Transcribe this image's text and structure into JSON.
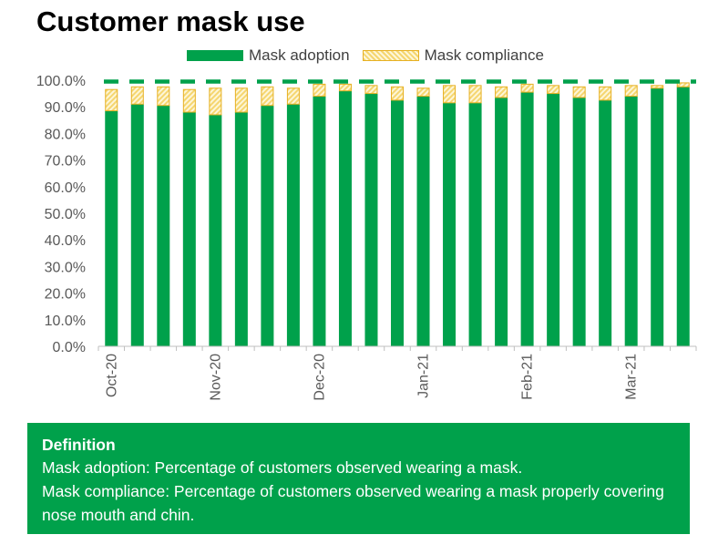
{
  "chart_data": {
    "type": "bar",
    "stacked": true,
    "title": "Customer mask use",
    "categories": [
      "Oct-20",
      "",
      "",
      "",
      "Nov-20",
      "",
      "",
      "",
      "Dec-20",
      "",
      "",
      "",
      "Jan-21",
      "",
      "",
      "",
      "Feb-21",
      "",
      "",
      "",
      "Mar-21",
      "",
      ""
    ],
    "x_tick_labels": [
      "Oct-20",
      "Nov-20",
      "Dec-20",
      "Jan-21",
      "Feb-21",
      "Mar-21"
    ],
    "series": [
      {
        "name": "Mask adoption",
        "values": [
          88.5,
          91,
          90.5,
          88,
          87,
          88,
          90.5,
          91,
          94,
          96,
          95,
          92.5,
          94,
          91.5,
          91.5,
          93.5,
          95.5,
          95,
          93.5,
          92.5,
          94,
          97,
          97.5
        ]
      },
      {
        "name": "Mask compliance",
        "values": [
          8,
          6.5,
          7,
          8.5,
          10,
          9,
          7,
          6,
          4.5,
          2.5,
          3,
          5,
          3,
          6.5,
          6.5,
          4,
          3,
          3,
          4,
          5,
          4,
          1,
          1.5
        ]
      }
    ],
    "target_line": 99.5,
    "ylim": [
      0,
      100
    ],
    "y_tick_labels": [
      "0.0%",
      "10.0%",
      "20.0%",
      "30.0%",
      "40.0%",
      "50.0%",
      "60.0%",
      "70.0%",
      "80.0%",
      "90.0%",
      "100.0%"
    ],
    "legend_position": "top",
    "grid": false,
    "colors": {
      "adoption": "#00a14b",
      "compliance_fill": "#fbe9a6",
      "compliance_border": "#e6b022",
      "target": "#00a14b",
      "axis": "#bfbfbf",
      "tick_text": "#595959"
    }
  },
  "definition": {
    "heading": "Definition",
    "line1": "Mask adoption: Percentage of customers observed wearing a mask.",
    "line2": "Mask compliance: Percentage of customers observed wearing a mask properly covering nose mouth and chin."
  }
}
